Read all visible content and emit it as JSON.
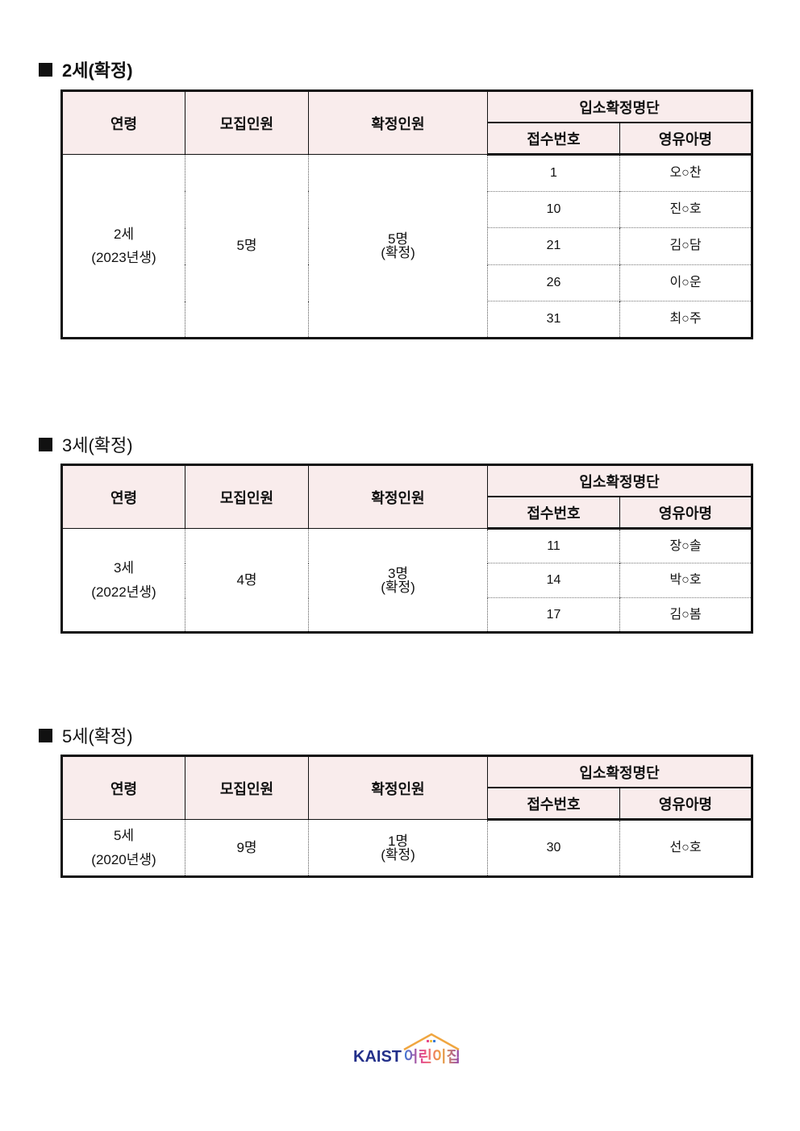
{
  "headers": {
    "age": "연령",
    "recruit": "모집인원",
    "confirmed": "확정인원",
    "list": "입소확정명단",
    "receipt_no": "접수번호",
    "child_name": "영유아명"
  },
  "sections": [
    {
      "title": "2세(확정)",
      "age": "2세",
      "birth": "(2023년생)",
      "recruit": "5명",
      "confirmed": "5명",
      "confirmed_note": "(확정)",
      "rows": [
        {
          "no": "1",
          "name": "오○찬"
        },
        {
          "no": "10",
          "name": "진○호"
        },
        {
          "no": "21",
          "name": "김○담"
        },
        {
          "no": "26",
          "name": "이○운"
        },
        {
          "no": "31",
          "name": "최○주"
        }
      ]
    },
    {
      "title": "3세(확정)",
      "age": "3세",
      "birth": "(2022년생)",
      "recruit": "4명",
      "confirmed": "3명",
      "confirmed_note": "(확정)",
      "rows": [
        {
          "no": "11",
          "name": "장○솔"
        },
        {
          "no": "14",
          "name": "박○호"
        },
        {
          "no": "17",
          "name": "김○봄"
        }
      ]
    },
    {
      "title": "5세(확정)",
      "age": "5세",
      "birth": "(2020년생)",
      "recruit": "9명",
      "confirmed": "1명",
      "confirmed_note": "(확정)",
      "rows": [
        {
          "no": "30",
          "name": "선○호"
        }
      ]
    }
  ],
  "logo": {
    "text_en": "KAIST",
    "text_ko": "어린이집",
    "colors": {
      "kaist": "#23308a",
      "accent": "#f0a640"
    }
  }
}
